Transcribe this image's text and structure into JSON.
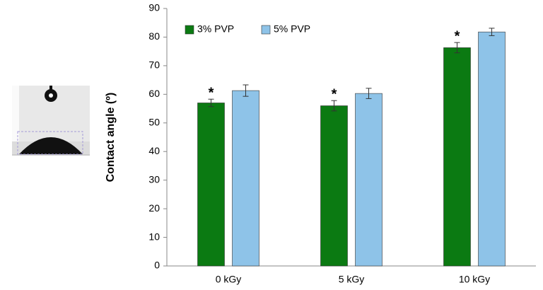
{
  "chart_data": {
    "type": "bar",
    "y_label": "Contact angle (º)",
    "categories": [
      "0 kGy",
      "5 kGy",
      "10 kGy"
    ],
    "series": [
      {
        "name": "3% PVP",
        "color": "#0b7a12",
        "values": [
          57,
          56,
          76.3
        ],
        "errors": [
          1.3,
          1.8,
          1.8
        ],
        "annotations": [
          "*",
          "*",
          "*"
        ]
      },
      {
        "name": "5% PVP",
        "color": "#8ec3e8",
        "values": [
          61.3,
          60.3,
          81.8
        ],
        "errors": [
          2,
          1.8,
          1.3
        ]
      }
    ],
    "ylim": [
      0,
      90
    ],
    "yticks": [
      0,
      10,
      20,
      30,
      40,
      50,
      60,
      70,
      80,
      90
    ],
    "legend": "upper left",
    "grid": false
  }
}
